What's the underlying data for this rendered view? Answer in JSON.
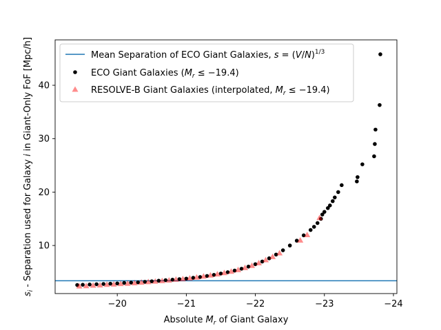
{
  "chart_data": {
    "type": "scatter",
    "xlabel": "Absolute M_r of Giant Galaxy",
    "ylabel": "s_i - Separation used for Galaxy i in Giant-Only FoF [Mpc/h]",
    "xlim": [
      -19.1,
      -24.05
    ],
    "ylim": [
      1.0,
      48.5
    ],
    "x_direction": "reversed",
    "xticks": [
      -20,
      -21,
      -22,
      -23,
      -24
    ],
    "xtick_labels": [
      "−20",
      "−21",
      "−22",
      "−23",
      "−24"
    ],
    "yticks": [
      10,
      20,
      30,
      40
    ],
    "ytick_labels": [
      "10",
      "20",
      "30",
      "40"
    ],
    "legend_position": "upper-left",
    "series": [
      {
        "name": "Mean Separation of ECO Giant Galaxies, s = (V/N)^1/3",
        "kind": "hline",
        "color": "#1f77b4",
        "y": 3.4
      },
      {
        "name": "ECO Giant Galaxies (M_r ≤ −19.4)",
        "kind": "points",
        "marker": "circle",
        "color": "#000000",
        "x": [
          -19.42,
          -19.5,
          -19.6,
          -19.7,
          -19.8,
          -19.9,
          -20.0,
          -20.1,
          -20.2,
          -20.3,
          -20.4,
          -20.5,
          -20.6,
          -20.7,
          -20.8,
          -20.9,
          -21.0,
          -21.1,
          -21.2,
          -21.3,
          -21.4,
          -21.5,
          -21.6,
          -21.7,
          -21.8,
          -21.9,
          -22.0,
          -22.1,
          -22.2,
          -22.3,
          -22.4,
          -22.5,
          -22.6,
          -22.7,
          -22.8,
          -22.85,
          -22.9,
          -22.95,
          -22.97,
          -23.0,
          -23.05,
          -23.08,
          -23.12,
          -23.15,
          -23.2,
          -23.25,
          -23.47,
          -23.48,
          -23.55,
          -23.72,
          -23.73,
          -23.74,
          -23.8,
          -23.81
        ],
        "y": [
          2.6,
          2.65,
          2.7,
          2.75,
          2.8,
          2.85,
          2.9,
          3.0,
          3.05,
          3.1,
          3.2,
          3.3,
          3.4,
          3.5,
          3.6,
          3.7,
          3.8,
          3.95,
          4.1,
          4.3,
          4.5,
          4.75,
          5.0,
          5.3,
          5.65,
          6.05,
          6.5,
          7.0,
          7.6,
          8.3,
          9.1,
          10.0,
          10.9,
          11.9,
          12.9,
          13.5,
          14.2,
          15.0,
          15.8,
          16.3,
          17.0,
          17.5,
          18.3,
          19.0,
          20.0,
          21.3,
          22.0,
          22.8,
          25.2,
          26.7,
          29.0,
          31.7,
          36.3,
          45.8
        ]
      },
      {
        "name": "RESOLVE-B Giant Galaxies (interpolated, M_r ≤ −19.4)",
        "kind": "points",
        "marker": "triangle",
        "color": "#ff0000",
        "x": [
          -19.45,
          -19.55,
          -19.65,
          -19.75,
          -19.85,
          -19.95,
          -20.05,
          -20.15,
          -20.25,
          -20.35,
          -20.45,
          -20.55,
          -20.65,
          -20.75,
          -20.85,
          -20.95,
          -21.05,
          -21.15,
          -21.25,
          -21.35,
          -21.45,
          -21.55,
          -21.65,
          -21.75,
          -21.85,
          -21.95,
          -22.05,
          -22.15,
          -22.25,
          -22.35,
          -22.65,
          -22.75,
          -22.93
        ],
        "y": [
          2.4,
          2.45,
          2.55,
          2.6,
          2.7,
          2.75,
          2.85,
          2.9,
          3.0,
          3.1,
          3.2,
          3.3,
          3.4,
          3.5,
          3.65,
          3.75,
          3.9,
          4.05,
          4.25,
          4.45,
          4.65,
          4.9,
          5.15,
          5.45,
          5.85,
          6.25,
          6.75,
          7.3,
          7.9,
          8.6,
          11.0,
          12.0,
          15.2
        ]
      }
    ]
  }
}
